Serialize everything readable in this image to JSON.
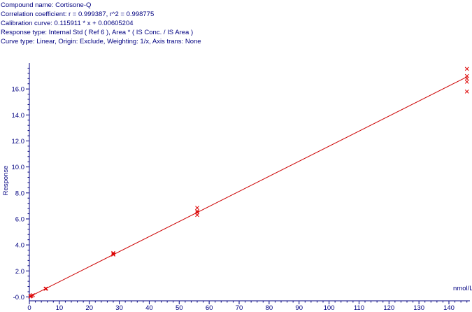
{
  "header": {
    "compound": "Compound name: Cortisone-Q",
    "correlation": "Correlation coefficient: r = 0.999387, r^2 = 0.998775",
    "calibration": "Calibration curve: 0.115911 * x + 0.00605204",
    "response_type": "Response type: Internal Std ( Ref 6 ), Area * ( IS Conc. / IS Area )",
    "curve_type": "Curve type: Linear, Origin: Exclude, Weighting: 1/x, Axis trans: None"
  },
  "chart_data": {
    "type": "scatter",
    "xlabel": "nmol/L",
    "ylabel": "Response",
    "xlim": [
      0,
      147
    ],
    "ylim": [
      -0.3,
      18.0
    ],
    "x_ticks": [
      0,
      10,
      20,
      30,
      40,
      50,
      60,
      70,
      80,
      90,
      100,
      110,
      120,
      130,
      140
    ],
    "x_tick_labels": [
      "0",
      "10",
      "20",
      "30",
      "40",
      "50",
      "60",
      "70",
      "80",
      "90",
      "100",
      "110",
      "120",
      "130",
      "140"
    ],
    "y_ticks": [
      0,
      2,
      4,
      6,
      8,
      10,
      12,
      14,
      16
    ],
    "y_tick_labels": [
      "-0.0",
      "2.0",
      "4.0",
      "6.0",
      "8.0",
      "10.0",
      "12.0",
      "14.0",
      "16.0"
    ],
    "fit_line": {
      "slope": 0.115911,
      "intercept": 0.00605204
    },
    "points": [
      {
        "x": 0.3,
        "y": 0.03
      },
      {
        "x": 0.5,
        "y": 0.06
      },
      {
        "x": 0.8,
        "y": 0.1
      },
      {
        "x": 1.2,
        "y": 0.14
      },
      {
        "x": 5.6,
        "y": 0.64
      },
      {
        "x": 5.4,
        "y": 0.62
      },
      {
        "x": 28.0,
        "y": 3.25
      },
      {
        "x": 28.0,
        "y": 3.38
      },
      {
        "x": 28.0,
        "y": 3.3
      },
      {
        "x": 56.0,
        "y": 6.3
      },
      {
        "x": 56.0,
        "y": 6.5
      },
      {
        "x": 56.0,
        "y": 6.6
      },
      {
        "x": 56.0,
        "y": 6.85
      },
      {
        "x": 146.0,
        "y": 15.8
      },
      {
        "x": 146.0,
        "y": 16.55
      },
      {
        "x": 146.0,
        "y": 16.8
      },
      {
        "x": 146.0,
        "y": 17.0
      },
      {
        "x": 146.0,
        "y": 17.55
      }
    ],
    "grid": false,
    "colors": {
      "axis": "#000080",
      "line": "#cc0000",
      "marker": "#dd0000"
    }
  }
}
